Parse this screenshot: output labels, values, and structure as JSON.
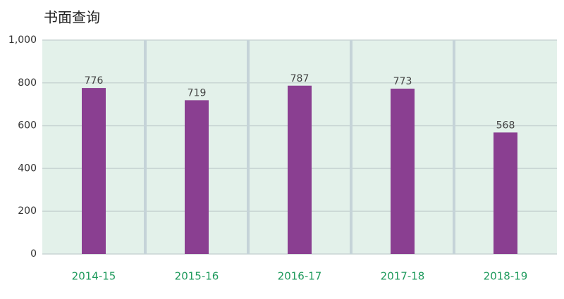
{
  "chart_data": {
    "type": "bar",
    "title": "书面查询",
    "categories": [
      "2014-15",
      "2015-16",
      "2016-17",
      "2017-18",
      "2018-19"
    ],
    "values": [
      776,
      719,
      787,
      773,
      568
    ],
    "color": "#8a3f91",
    "ylim": [
      0,
      1000
    ],
    "yticks": [
      0,
      200,
      400,
      600,
      800,
      {
        "value": 1000,
        "label": "1,000"
      }
    ],
    "grid": true
  }
}
